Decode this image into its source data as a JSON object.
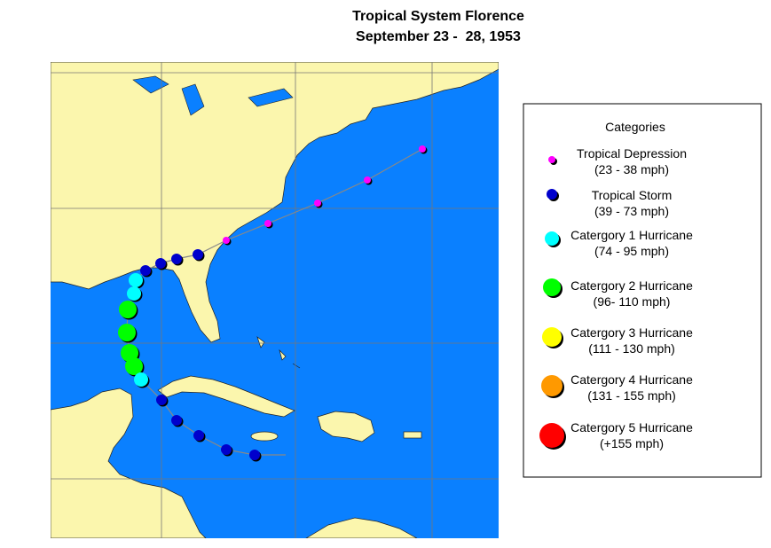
{
  "title": {
    "line1": "Tropical System Florence",
    "line2": "September 23 -  28, 1953"
  },
  "legend": {
    "heading": "Categories",
    "items": [
      {
        "name": "Tropical Depression",
        "range": "(23 - 38 mph)",
        "color": "#ff00ff"
      },
      {
        "name": "Tropical Storm",
        "range": "(39 - 73 mph)",
        "color": "#0000cc"
      },
      {
        "name": "Catergory 1 Hurricane",
        "range": "(74 - 95 mph)",
        "color": "#00ffff"
      },
      {
        "name": "Catergory 2 Hurricane",
        "range": "(96- 110 mph)",
        "color": "#00ff00"
      },
      {
        "name": "Catergory 3 Hurricane",
        "range": "(111 - 130 mph)",
        "color": "#ffff00"
      },
      {
        "name": "Catergory 4 Hurricane",
        "range": "(131 - 155 mph)",
        "color": "#ff9900"
      },
      {
        "name": "Catergory 5 Hurricane",
        "range": "(+155 mph)",
        "color": "#ff0000"
      }
    ]
  }
}
